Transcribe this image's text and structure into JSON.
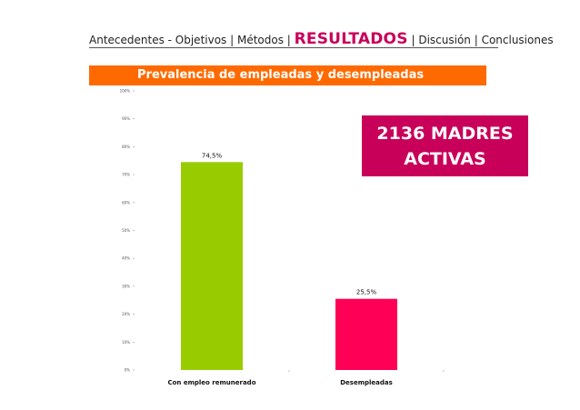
{
  "header": {
    "nav_before": "Antecedentes - Objetivos | Métodos | ",
    "nav_active": "RESULTADOS",
    "nav_after": " | Discusión | Conclusiones"
  },
  "banner": {
    "title": "Prevalencia de empleadas y desempleadas"
  },
  "callout": {
    "line1": "2136 MADRES",
    "line2": "ACTIVAS"
  },
  "colors": {
    "banner_bg": "#ff6a00",
    "callout_bg": "#c8005a",
    "bar_employed": "#99cc00",
    "bar_unemployed": "#ff0057"
  },
  "chart_data": {
    "type": "bar",
    "categories": [
      "Con empleo remunerado",
      "Desempleadas"
    ],
    "values": [
      74.5,
      25.5
    ],
    "value_labels": [
      "74,5%",
      "25,5%"
    ],
    "bar_colors": [
      "#99cc00",
      "#ff0057"
    ],
    "ylim": [
      0,
      100
    ],
    "yticks": [
      0,
      10,
      20,
      30,
      40,
      50,
      60,
      70,
      80,
      90,
      100
    ],
    "ytick_labels": [
      "0%",
      "10%",
      "20%",
      "30%",
      "40%",
      "50%",
      "60%",
      "70%",
      "80%",
      "90%",
      "100%"
    ],
    "title": "",
    "xlabel": "",
    "ylabel": "",
    "grid": false,
    "legend": false
  }
}
